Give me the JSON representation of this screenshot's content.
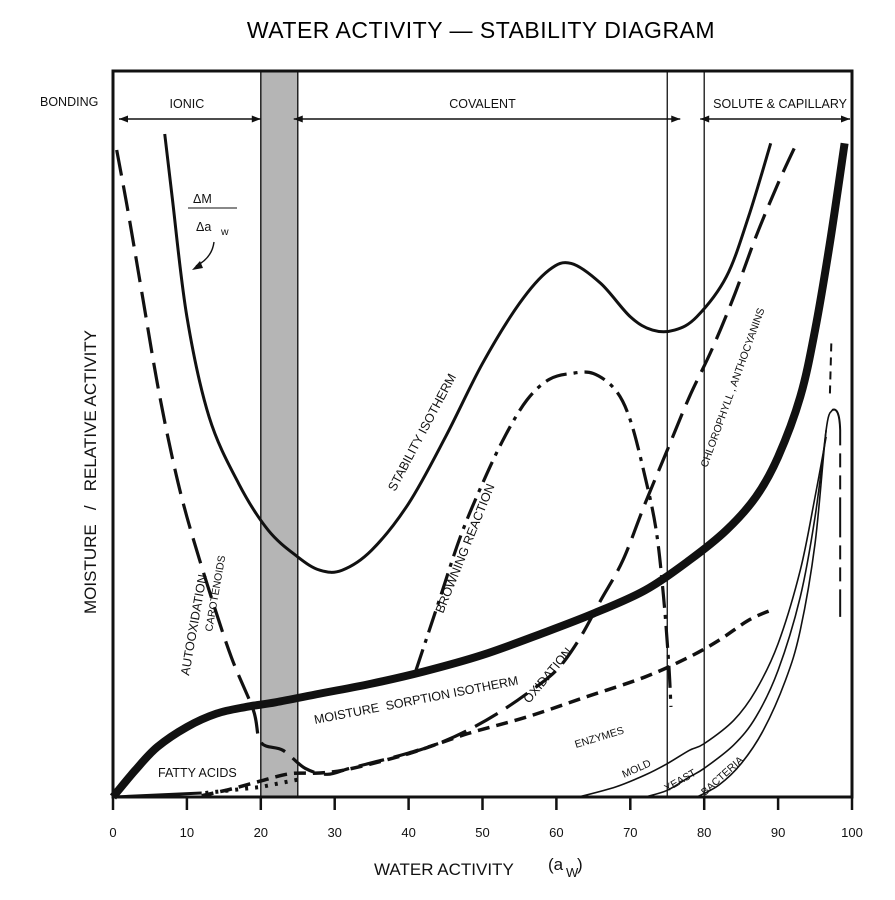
{
  "chart_data": {
    "type": "line",
    "title": "WATER ACTIVITY — STABILITY DIAGRAM",
    "xlabel": "WATER ACTIVITY",
    "xlabel_symbol": "(a",
    "xlabel_subscript": "W",
    "xlabel_close": ")",
    "ylabel": "MOISTURE   /   RELATIVE ACTIVITY",
    "xlim": [
      0,
      100
    ],
    "ylim": [
      0,
      100
    ],
    "x_ticks": [
      0,
      10,
      20,
      30,
      40,
      50,
      60,
      70,
      80,
      90,
      100
    ],
    "grid": false,
    "shaded_band": {
      "x_from": 20,
      "x_to": 25,
      "color": "#b8b8b8"
    },
    "vertical_lines": [
      75,
      80
    ],
    "bonding": {
      "label": "BONDING",
      "regions": [
        {
          "name": "IONIC",
          "from": 0,
          "to": 20
        },
        {
          "name": "COVALENT",
          "from": 25,
          "to": 75
        },
        {
          "name": "SOLUTE & CAPILLARY",
          "from": 80,
          "to": 100
        }
      ]
    },
    "derivative_annotation": {
      "numerator": "ΔM",
      "denominator": "Δa",
      "denominator_sub": "w"
    },
    "series": [
      {
        "name": "STABILITY ISOTHERM",
        "style": "solid",
        "x": [
          7,
          8,
          10,
          13,
          17,
          21,
          25,
          28,
          31,
          35,
          40,
          45,
          50,
          55,
          59,
          62,
          66,
          70,
          73,
          76,
          79,
          83,
          86,
          89
        ],
        "y": [
          99.4,
          90,
          72,
          57,
          47,
          40,
          36,
          34,
          34,
          37,
          44,
          54,
          65,
          74,
          79,
          80,
          77,
          72,
          70,
          70,
          72,
          78,
          87,
          98
        ]
      },
      {
        "name": "MOISTURE SORPTION ISOTHERM",
        "style": "bold",
        "x": [
          0,
          3,
          6,
          10,
          14,
          18,
          22,
          28,
          35,
          42,
          50,
          58,
          65,
          72,
          78,
          83,
          87,
          90,
          93,
          95,
          97,
          99
        ],
        "y": [
          0,
          4,
          7.5,
          10.5,
          12.5,
          13.5,
          14.2,
          15.5,
          17,
          18.8,
          21.3,
          24.5,
          27.5,
          31,
          35.5,
          40,
          45,
          51,
          60,
          70,
          83,
          98
        ]
      },
      {
        "name": "AUTOOXIDATION CAROTENOIDS",
        "style": "long-dash",
        "x": [
          0.5,
          2,
          4,
          6,
          8,
          10,
          13,
          16,
          19,
          20,
          23,
          26,
          29,
          32,
          36,
          40,
          44
        ],
        "y": [
          97,
          88,
          75,
          62,
          51,
          42,
          31,
          21,
          13,
          8.2,
          7,
          4.3,
          3.4,
          4.3,
          5.4,
          6.6,
          8
        ]
      },
      {
        "name": "BROWNING REACTION",
        "style": "dash-dot",
        "x": [
          41,
          44,
          47,
          50,
          53,
          56,
          59,
          62,
          65,
          68,
          70,
          72,
          73.5,
          74.5,
          75.2,
          75.5
        ],
        "y": [
          19,
          29,
          39,
          47,
          54,
          59.5,
          62.6,
          63.5,
          63.5,
          61,
          56.5,
          48,
          40,
          30,
          20,
          13.5
        ]
      },
      {
        "name": "OXIDATION CHLOROPHYLL, ANTHOCYANINS",
        "style": "long-dash",
        "x": [
          40,
          44,
          48,
          52,
          56,
          60,
          63,
          66,
          69,
          72,
          75,
          78,
          81,
          84,
          87,
          90,
          92.5
        ],
        "y": [
          6.5,
          8,
          10,
          12.5,
          15.5,
          19,
          23.5,
          29.5,
          35.5,
          44,
          52,
          60,
          67,
          75,
          84,
          92,
          98
        ]
      },
      {
        "name": "ENZYMES",
        "style": "short-dash",
        "x": [
          12,
          16,
          20,
          24,
          28,
          32,
          40,
          48,
          56,
          64,
          72,
          78,
          82,
          86,
          89
        ],
        "y": [
          0.2,
          1.2,
          2.4,
          3.5,
          3.6,
          4.2,
          6.5,
          9.5,
          12,
          15,
          18,
          21,
          23.5,
          26.5,
          28
        ]
      },
      {
        "name": "FATTY ACIDS",
        "style": "solid",
        "x": [
          0,
          12
        ],
        "y": [
          0,
          0.6
        ]
      },
      {
        "name": "MOLD",
        "style": "thin",
        "x": [
          63,
          68,
          72,
          75,
          78,
          80,
          84,
          87,
          90,
          93,
          95,
          96.5
        ],
        "y": [
          0,
          1.5,
          3.3,
          5,
          7,
          8,
          11.5,
          16,
          23,
          34,
          45,
          54
        ]
      },
      {
        "name": "YEAST",
        "style": "thin",
        "x": [
          72,
          75,
          78,
          80,
          84,
          87,
          90,
          93,
          95,
          96.5
        ],
        "y": [
          0,
          1,
          3,
          4.3,
          7.8,
          12,
          19,
          30,
          42,
          55
        ]
      },
      {
        "name": "BACTERIA",
        "style": "thin",
        "x": [
          79,
          82,
          85,
          88,
          91,
          93,
          95,
          96.5,
          97.3
        ],
        "y": [
          0,
          1.8,
          5,
          10,
          17.5,
          25,
          38,
          55,
          58
        ]
      }
    ],
    "annotations": [
      "STABILITY ISOTHERM",
      "BROWNING REACTION",
      "AUTOOXIDATION",
      "CAROTENOIDS",
      "MOISTURE SORPTION ISOTHERM",
      "OXIDATION",
      "CHLOROPHYLL, ANTHOCYANINS",
      "ENZYMES",
      "FATTY ACIDS",
      "MOLD",
      "YEAST",
      "BACTERIA"
    ],
    "labels": {
      "stability": "STABILITY ISOTHERM",
      "browning": "BROWNING REACTION",
      "autoox": "AUTOOXIDATION",
      "carot": "CAROTENOIDS",
      "sorption": "MOISTURE  SORPTION ISOTHERM",
      "oxidation": "OXIDATION",
      "chloro": "CHLOROPHYLL , ANTHOCYANINS",
      "enzymes": "ENZYMES",
      "fatty": "FATTY ACIDS",
      "mold": "MOLD",
      "yeast": "YEAST",
      "bacteria": "BACTERIA"
    }
  }
}
